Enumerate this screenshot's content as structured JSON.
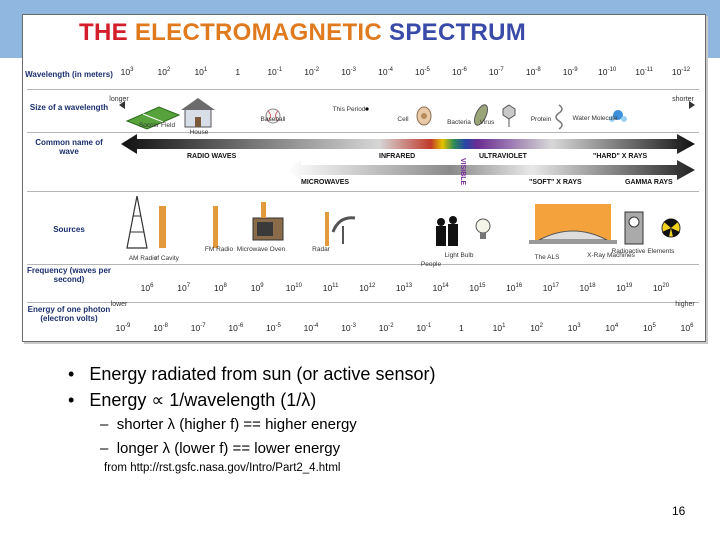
{
  "title_parts": [
    {
      "text": "THE ",
      "color": "#d21f2b"
    },
    {
      "text": "ELECTROMAGNETIC ",
      "color": "#e07a1e"
    },
    {
      "text": "SPECTRUM",
      "color": "#3a4aa8"
    }
  ],
  "row_labels": {
    "wavelength": "Wavelength (in meters)",
    "size": "Size of a wavelength",
    "common_name": "Common name of wave",
    "sources": "Sources",
    "frequency": "Frequency (waves per second)",
    "energy": "Energy of one photon (electron volts)"
  },
  "wavelength_ticks": [
    {
      "base": "10",
      "exp": "3"
    },
    {
      "base": "10",
      "exp": "2"
    },
    {
      "base": "10",
      "exp": "1"
    },
    {
      "base": "1",
      "exp": ""
    },
    {
      "base": "10",
      "exp": "-1"
    },
    {
      "base": "10",
      "exp": "-2"
    },
    {
      "base": "10",
      "exp": "-3"
    },
    {
      "base": "10",
      "exp": "-4"
    },
    {
      "base": "10",
      "exp": "-5"
    },
    {
      "base": "10",
      "exp": "-6"
    },
    {
      "base": "10",
      "exp": "-7"
    },
    {
      "base": "10",
      "exp": "-8"
    },
    {
      "base": "10",
      "exp": "-9"
    },
    {
      "base": "10",
      "exp": "-10"
    },
    {
      "base": "10",
      "exp": "-11"
    },
    {
      "base": "10",
      "exp": "-12"
    }
  ],
  "size_longer": "longer",
  "size_shorter": "shorter",
  "size_objects": [
    "Soccer Field",
    "House",
    "Baseball",
    "This Period",
    "Cell",
    "Bacteria",
    "Virus",
    "Protein",
    "Water Molecule"
  ],
  "wave_names": {
    "radio": "RADIO WAVES",
    "infrared": "INFRARED",
    "visible": "VISIBLE",
    "ultraviolet": "ULTRAVIOLET",
    "hard_xrays": "\"HARD\" X RAYS",
    "microwaves": "MICROWAVES",
    "soft_xrays": "\"SOFT\" X RAYS",
    "gamma": "GAMMA RAYS"
  },
  "source_objects": [
    "AM Radio",
    "rf Cavity",
    "FM Radio",
    "Microwave Oven",
    "Radar",
    "People",
    "Light Bulb",
    "The ALS",
    "X-Ray Machines",
    "Radioactive Elements"
  ],
  "frequency_ticks": [
    {
      "base": "10",
      "exp": "6"
    },
    {
      "base": "10",
      "exp": "7"
    },
    {
      "base": "10",
      "exp": "8"
    },
    {
      "base": "10",
      "exp": "9"
    },
    {
      "base": "10",
      "exp": "10"
    },
    {
      "base": "10",
      "exp": "11"
    },
    {
      "base": "10",
      "exp": "12"
    },
    {
      "base": "10",
      "exp": "13"
    },
    {
      "base": "10",
      "exp": "14"
    },
    {
      "base": "10",
      "exp": "15"
    },
    {
      "base": "10",
      "exp": "16"
    },
    {
      "base": "10",
      "exp": "17"
    },
    {
      "base": "10",
      "exp": "18"
    },
    {
      "base": "10",
      "exp": "19"
    },
    {
      "base": "10",
      "exp": "20"
    }
  ],
  "freq_lower": "lower",
  "freq_higher": "higher",
  "energy_ticks": [
    {
      "base": "10",
      "exp": "-9"
    },
    {
      "base": "10",
      "exp": "-8"
    },
    {
      "base": "10",
      "exp": "-7"
    },
    {
      "base": "10",
      "exp": "-6"
    },
    {
      "base": "10",
      "exp": "-5"
    },
    {
      "base": "10",
      "exp": "-4"
    },
    {
      "base": "10",
      "exp": "-3"
    },
    {
      "base": "10",
      "exp": "-2"
    },
    {
      "base": "10",
      "exp": "-1"
    },
    {
      "base": "1",
      "exp": ""
    },
    {
      "base": "10",
      "exp": "1"
    },
    {
      "base": "10",
      "exp": "2"
    },
    {
      "base": "10",
      "exp": "3"
    },
    {
      "base": "10",
      "exp": "4"
    },
    {
      "base": "10",
      "exp": "5"
    },
    {
      "base": "10",
      "exp": "6"
    }
  ],
  "bullets": [
    "Energy radiated from sun (or active sensor)",
    "Energy ∝ 1/wavelength (1/λ)"
  ],
  "sub_bullets": [
    "shorter λ (higher f) == higher energy",
    "longer λ (lower f) == lower energy"
  ],
  "source_note": "from http://rst.gsfc.nasa.gov/Intro/Part2_4.html",
  "page_number": "16"
}
